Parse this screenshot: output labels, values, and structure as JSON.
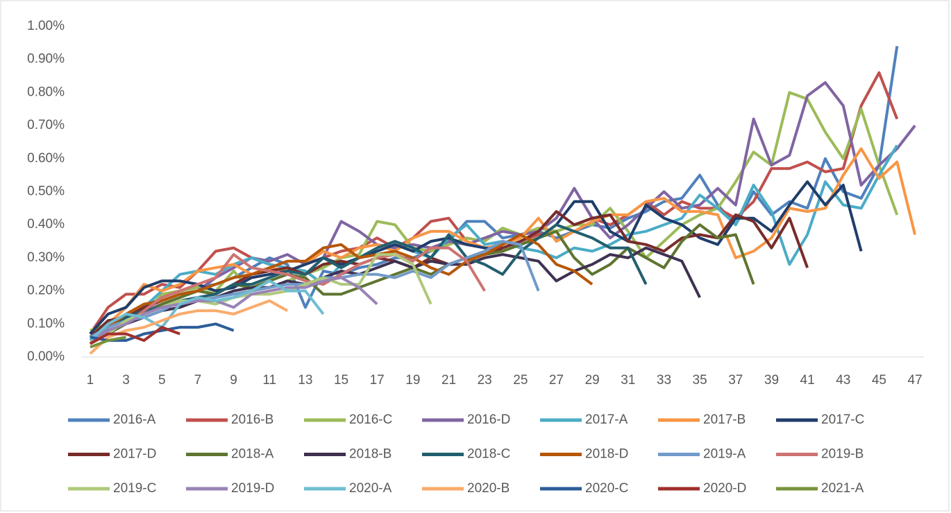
{
  "chart_data": {
    "type": "line",
    "x": [
      1,
      2,
      3,
      4,
      5,
      6,
      7,
      8,
      9,
      10,
      11,
      12,
      13,
      14,
      15,
      16,
      17,
      18,
      19,
      20,
      21,
      22,
      23,
      24,
      25,
      26,
      27,
      28,
      29,
      30,
      31,
      32,
      33,
      34,
      35,
      36,
      37,
      38,
      39,
      40,
      41,
      42,
      43,
      44,
      45,
      46,
      47
    ],
    "xlim": [
      0.5,
      47.5
    ],
    "xticks": [
      1,
      3,
      5,
      7,
      9,
      11,
      13,
      15,
      17,
      19,
      21,
      23,
      25,
      27,
      29,
      31,
      33,
      35,
      37,
      39,
      41,
      43,
      45,
      47
    ],
    "ylim": [
      0,
      1.0
    ],
    "yticks": [
      {
        "value": 0,
        "label": "0.00%"
      },
      {
        "value": 0.1,
        "label": "0.10%"
      },
      {
        "value": 0.2,
        "label": "0.20%"
      },
      {
        "value": 0.3,
        "label": "0.30%"
      },
      {
        "value": 0.4,
        "label": "0.40%"
      },
      {
        "value": 0.5,
        "label": "0.50%"
      },
      {
        "value": 0.6,
        "label": "0.60%"
      },
      {
        "value": 0.7,
        "label": "0.70%"
      },
      {
        "value": 0.8,
        "label": "0.80%"
      },
      {
        "value": 0.9,
        "label": "0.90%"
      },
      {
        "value": 1.0,
        "label": "1.00%"
      }
    ],
    "grid": false,
    "legend": "bottom",
    "series": [
      {
        "name": "2016-A",
        "color": "#4f81bd",
        "values": [
          0.05,
          0.1,
          0.12,
          0.15,
          0.18,
          0.2,
          0.21,
          0.22,
          0.24,
          0.27,
          0.3,
          0.28,
          0.15,
          0.26,
          0.25,
          0.27,
          0.28,
          0.3,
          0.3,
          0.32,
          0.35,
          0.41,
          0.41,
          0.36,
          0.37,
          0.38,
          0.36,
          0.38,
          0.4,
          0.39,
          0.42,
          0.44,
          0.47,
          0.48,
          0.55,
          0.46,
          0.4,
          0.5,
          0.43,
          0.47,
          0.45,
          0.6,
          0.5,
          0.48,
          0.58,
          0.94,
          null
        ]
      },
      {
        "name": "2016-B",
        "color": "#c0504d",
        "values": [
          0.07,
          0.15,
          0.19,
          0.19,
          0.22,
          0.21,
          0.26,
          0.32,
          0.33,
          0.3,
          0.28,
          0.27,
          0.25,
          0.3,
          0.32,
          0.33,
          0.36,
          0.33,
          0.36,
          0.41,
          0.42,
          0.35,
          0.33,
          0.33,
          0.35,
          0.37,
          0.38,
          0.4,
          0.42,
          0.4,
          0.43,
          0.47,
          0.43,
          0.47,
          0.45,
          0.45,
          0.42,
          0.47,
          0.57,
          0.57,
          0.59,
          0.56,
          0.57,
          0.76,
          0.86,
          0.72,
          null
        ]
      },
      {
        "name": "2016-C",
        "color": "#9bbb59",
        "values": [
          0.08,
          0.1,
          0.11,
          0.13,
          0.19,
          0.2,
          0.21,
          0.2,
          0.26,
          0.2,
          0.21,
          0.23,
          0.25,
          0.27,
          0.3,
          0.31,
          0.41,
          0.4,
          0.33,
          0.32,
          0.34,
          0.36,
          0.35,
          0.39,
          0.37,
          0.39,
          0.38,
          0.4,
          0.4,
          0.45,
          0.38,
          0.3,
          0.35,
          0.4,
          0.43,
          0.45,
          0.53,
          0.62,
          0.58,
          0.8,
          0.78,
          0.68,
          0.6,
          0.75,
          0.58,
          0.43,
          null
        ]
      },
      {
        "name": "2016-D",
        "color": "#8064a2",
        "values": [
          0.05,
          0.09,
          0.12,
          0.14,
          0.16,
          0.18,
          0.2,
          0.24,
          0.27,
          0.3,
          0.29,
          0.31,
          0.28,
          0.3,
          0.41,
          0.38,
          0.34,
          0.33,
          0.34,
          0.33,
          0.35,
          0.34,
          0.36,
          0.38,
          0.37,
          0.38,
          0.42,
          0.51,
          0.42,
          0.36,
          0.4,
          0.45,
          0.5,
          0.45,
          0.46,
          0.51,
          0.46,
          0.72,
          0.58,
          0.61,
          0.79,
          0.83,
          0.76,
          0.52,
          0.58,
          0.63,
          0.7
        ]
      },
      {
        "name": "2017-A",
        "color": "#4bacc6",
        "values": [
          0.06,
          0.09,
          0.12,
          0.15,
          0.2,
          0.25,
          0.26,
          0.25,
          0.28,
          0.3,
          0.28,
          0.27,
          0.26,
          0.22,
          0.28,
          0.3,
          0.32,
          0.34,
          0.32,
          0.3,
          0.36,
          0.4,
          0.34,
          0.35,
          0.33,
          0.32,
          0.3,
          0.33,
          0.32,
          0.34,
          0.37,
          0.38,
          0.4,
          0.42,
          0.49,
          0.45,
          0.4,
          0.52,
          0.44,
          0.28,
          0.37,
          0.53,
          0.46,
          0.45,
          0.55,
          0.64,
          null
        ]
      },
      {
        "name": "2017-B",
        "color": "#f79646",
        "values": [
          0.04,
          0.1,
          0.15,
          0.22,
          0.2,
          0.22,
          0.26,
          0.27,
          0.28,
          0.25,
          0.27,
          0.26,
          0.28,
          0.32,
          0.3,
          0.33,
          0.34,
          0.32,
          0.36,
          0.38,
          0.38,
          0.35,
          0.33,
          0.34,
          0.36,
          0.42,
          0.35,
          0.38,
          0.41,
          0.43,
          0.43,
          0.47,
          0.48,
          0.44,
          0.44,
          0.43,
          0.3,
          0.32,
          0.36,
          0.45,
          0.44,
          0.45,
          0.55,
          0.63,
          0.54,
          0.59,
          0.37
        ]
      },
      {
        "name": "2017-C",
        "color": "#1f3d6b",
        "values": [
          0.07,
          0.13,
          0.15,
          0.21,
          0.23,
          0.23,
          0.22,
          0.2,
          0.21,
          0.24,
          0.25,
          0.26,
          0.28,
          0.3,
          0.28,
          0.3,
          0.32,
          0.34,
          0.32,
          0.35,
          0.36,
          0.34,
          0.33,
          0.32,
          0.34,
          0.36,
          0.4,
          0.47,
          0.47,
          0.38,
          0.35,
          0.46,
          0.42,
          0.4,
          0.36,
          0.34,
          0.42,
          0.42,
          0.38,
          0.46,
          0.53,
          0.46,
          0.52,
          0.32,
          null,
          null,
          null
        ]
      },
      {
        "name": "2017-D",
        "color": "#772c2a",
        "values": [
          0.06,
          0.11,
          0.12,
          0.15,
          0.17,
          0.19,
          0.2,
          0.19,
          0.22,
          0.25,
          0.26,
          0.27,
          0.25,
          0.28,
          0.29,
          0.28,
          0.3,
          0.29,
          0.27,
          0.3,
          0.28,
          0.3,
          0.31,
          0.33,
          0.35,
          0.38,
          0.44,
          0.4,
          0.42,
          0.43,
          0.35,
          0.34,
          0.32,
          0.36,
          0.37,
          0.36,
          0.43,
          0.41,
          0.33,
          0.42,
          0.27,
          null,
          null,
          null,
          null,
          null,
          null
        ]
      },
      {
        "name": "2018-A",
        "color": "#5f7530",
        "values": [
          0.04,
          0.07,
          0.1,
          0.13,
          0.16,
          0.18,
          0.2,
          0.19,
          0.22,
          0.21,
          0.23,
          0.25,
          0.24,
          0.19,
          0.19,
          0.21,
          0.23,
          0.25,
          0.27,
          0.25,
          0.28,
          0.3,
          0.31,
          0.32,
          0.34,
          0.36,
          0.38,
          0.3,
          0.25,
          0.28,
          0.33,
          0.3,
          0.27,
          0.35,
          0.4,
          0.36,
          0.37,
          0.22,
          null,
          null,
          null,
          null,
          null,
          null,
          null,
          null,
          null
        ]
      },
      {
        "name": "2018-B",
        "color": "#3f3151",
        "values": [
          0.05,
          0.08,
          0.1,
          0.12,
          0.14,
          0.15,
          0.17,
          0.18,
          0.2,
          0.21,
          0.21,
          0.23,
          0.22,
          0.24,
          0.26,
          0.25,
          0.27,
          0.29,
          0.27,
          0.29,
          0.28,
          0.28,
          0.3,
          0.31,
          0.3,
          0.29,
          0.23,
          0.26,
          0.28,
          0.31,
          0.3,
          0.33,
          0.31,
          0.29,
          0.18,
          null,
          null,
          null,
          null,
          null,
          null,
          null,
          null,
          null,
          null,
          null,
          null
        ]
      },
      {
        "name": "2018-C",
        "color": "#215f6e",
        "values": [
          0.06,
          0.09,
          0.12,
          0.14,
          0.15,
          0.17,
          0.18,
          0.19,
          0.22,
          0.22,
          0.24,
          0.26,
          0.25,
          0.3,
          0.27,
          0.3,
          0.33,
          0.35,
          0.33,
          0.3,
          0.37,
          0.3,
          0.28,
          0.25,
          0.32,
          0.36,
          0.4,
          0.38,
          0.36,
          0.33,
          0.33,
          0.22,
          null,
          null,
          null,
          null,
          null,
          null,
          null,
          null,
          null,
          null,
          null,
          null,
          null,
          null,
          null
        ]
      },
      {
        "name": "2018-D",
        "color": "#b65708",
        "values": [
          0.05,
          0.09,
          0.13,
          0.16,
          0.17,
          0.19,
          0.2,
          0.22,
          0.24,
          0.25,
          0.27,
          0.29,
          0.29,
          0.33,
          0.34,
          0.3,
          0.31,
          0.32,
          0.3,
          0.27,
          0.25,
          0.29,
          0.31,
          0.34,
          0.37,
          0.34,
          0.28,
          0.26,
          0.22,
          null,
          null,
          null,
          null,
          null,
          null,
          null,
          null,
          null,
          null,
          null,
          null,
          null,
          null,
          null,
          null,
          null,
          null
        ]
      },
      {
        "name": "2019-A",
        "color": "#729aca",
        "values": [
          0.06,
          0.09,
          0.11,
          0.12,
          0.14,
          0.17,
          0.17,
          0.18,
          0.19,
          0.2,
          0.21,
          0.22,
          0.22,
          0.24,
          0.24,
          0.25,
          0.25,
          0.24,
          0.26,
          0.24,
          0.28,
          0.3,
          0.32,
          0.35,
          0.34,
          0.2,
          null,
          null,
          null,
          null,
          null,
          null,
          null,
          null,
          null,
          null,
          null,
          null,
          null,
          null,
          null,
          null,
          null,
          null,
          null,
          null,
          null
        ]
      },
      {
        "name": "2019-B",
        "color": "#cd7371",
        "values": [
          0.05,
          0.08,
          0.1,
          0.14,
          0.18,
          0.2,
          0.22,
          0.24,
          0.31,
          0.27,
          0.26,
          0.25,
          0.23,
          0.22,
          0.25,
          0.28,
          0.3,
          0.31,
          0.29,
          0.33,
          0.33,
          0.29,
          0.2,
          null,
          null,
          null,
          null,
          null,
          null,
          null,
          null,
          null,
          null,
          null,
          null,
          null,
          null,
          null,
          null,
          null,
          null,
          null,
          null,
          null,
          null,
          null,
          null
        ]
      },
      {
        "name": "2019-C",
        "color": "#afc97a",
        "values": [
          0.04,
          0.07,
          0.11,
          0.13,
          0.15,
          0.17,
          0.17,
          0.16,
          0.18,
          0.19,
          0.19,
          0.2,
          0.22,
          0.24,
          0.22,
          0.22,
          0.31,
          0.31,
          0.28,
          0.16,
          null,
          null,
          null,
          null,
          null,
          null,
          null,
          null,
          null,
          null,
          null,
          null,
          null,
          null,
          null,
          null,
          null,
          null,
          null,
          null,
          null,
          null,
          null,
          null,
          null,
          null,
          null
        ]
      },
      {
        "name": "2019-D",
        "color": "#9983b5",
        "values": [
          0.05,
          0.08,
          0.1,
          0.13,
          0.15,
          0.16,
          0.17,
          0.17,
          0.15,
          0.19,
          0.2,
          0.21,
          0.21,
          0.23,
          0.24,
          0.21,
          0.16,
          null,
          null,
          null,
          null,
          null,
          null,
          null,
          null,
          null,
          null,
          null,
          null,
          null,
          null,
          null,
          null,
          null,
          null,
          null,
          null,
          null,
          null,
          null,
          null,
          null,
          null,
          null,
          null,
          null,
          null
        ]
      },
      {
        "name": "2020-A",
        "color": "#6fbdd1",
        "values": [
          0.05,
          0.1,
          0.13,
          0.12,
          0.09,
          0.16,
          0.18,
          0.17,
          0.18,
          0.2,
          0.23,
          0.2,
          0.2,
          0.13,
          null,
          null,
          null,
          null,
          null,
          null,
          null,
          null,
          null,
          null,
          null,
          null,
          null,
          null,
          null,
          null,
          null,
          null,
          null,
          null,
          null,
          null,
          null,
          null,
          null,
          null,
          null,
          null,
          null,
          null,
          null,
          null,
          null
        ]
      },
      {
        "name": "2020-B",
        "color": "#f9ab6b",
        "values": [
          0.01,
          0.06,
          0.08,
          0.09,
          0.11,
          0.13,
          0.14,
          0.14,
          0.13,
          0.15,
          0.17,
          0.14,
          null,
          null,
          null,
          null,
          null,
          null,
          null,
          null,
          null,
          null,
          null,
          null,
          null,
          null,
          null,
          null,
          null,
          null,
          null,
          null,
          null,
          null,
          null,
          null,
          null,
          null,
          null,
          null,
          null,
          null,
          null,
          null,
          null,
          null,
          null
        ]
      },
      {
        "name": "2020-C",
        "color": "#2c5d98",
        "values": [
          0.06,
          0.05,
          0.05,
          0.07,
          0.08,
          0.09,
          0.09,
          0.1,
          0.08,
          null,
          null,
          null,
          null,
          null,
          null,
          null,
          null,
          null,
          null,
          null,
          null,
          null,
          null,
          null,
          null,
          null,
          null,
          null,
          null,
          null,
          null,
          null,
          null,
          null,
          null,
          null,
          null,
          null,
          null,
          null,
          null,
          null,
          null,
          null,
          null,
          null,
          null
        ]
      },
      {
        "name": "2020-D",
        "color": "#a0302d",
        "values": [
          0.04,
          0.07,
          0.07,
          0.05,
          0.09,
          0.07,
          null,
          null,
          null,
          null,
          null,
          null,
          null,
          null,
          null,
          null,
          null,
          null,
          null,
          null,
          null,
          null,
          null,
          null,
          null,
          null,
          null,
          null,
          null,
          null,
          null,
          null,
          null,
          null,
          null,
          null,
          null,
          null,
          null,
          null,
          null,
          null,
          null,
          null,
          null,
          null,
          null
        ]
      },
      {
        "name": "2021-A",
        "color": "#77933c",
        "values": [
          0.03,
          0.05,
          0.06,
          null,
          null,
          null,
          null,
          null,
          null,
          null,
          null,
          null,
          null,
          null,
          null,
          null,
          null,
          null,
          null,
          null,
          null,
          null,
          null,
          null,
          null,
          null,
          null,
          null,
          null,
          null,
          null,
          null,
          null,
          null,
          null,
          null,
          null,
          null,
          null,
          null,
          null,
          null,
          null,
          null,
          null,
          null,
          null
        ]
      }
    ]
  }
}
